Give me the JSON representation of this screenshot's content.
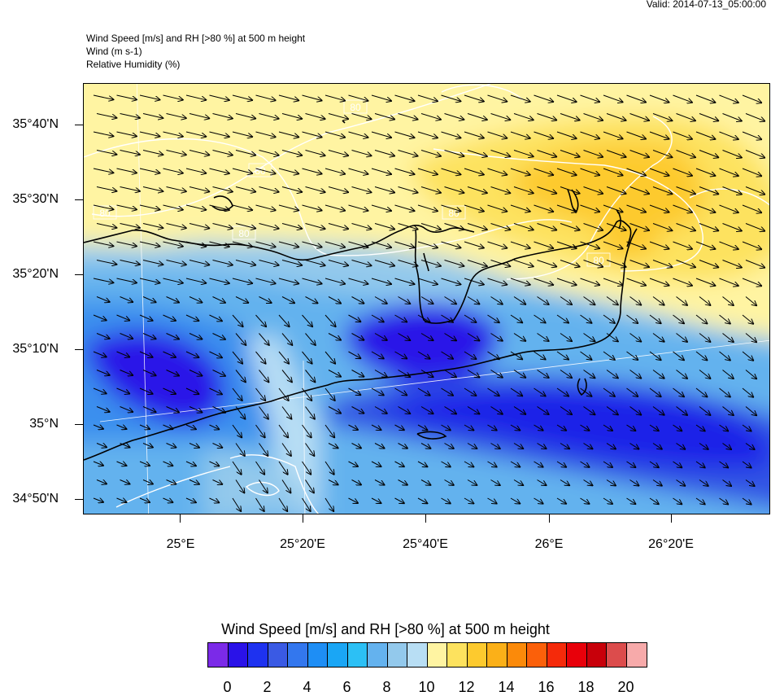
{
  "header": {
    "valid": "Valid: 2014-07-13_05:00:00",
    "line1": "Wind Speed [m/s] and RH [>80 %] at 500 m height",
    "line2": "Wind   (m s-1)",
    "line3": "Relative Humidity   (%)"
  },
  "map": {
    "lat_labels": [
      "35°40'N",
      "35°30'N",
      "35°20'N",
      "35°10'N",
      "35°N",
      "34°50'N"
    ],
    "lon_labels": [
      "25°E",
      "25°20'E",
      "25°40'E",
      "26°E",
      "26°20'E"
    ],
    "contour_labels": [
      "80",
      "80",
      "80",
      "80",
      "80",
      "80"
    ],
    "wind_direction": "west-northwest, toward east-southeast",
    "land_outline_color": "#000000",
    "rh_contour_color": "#ffffff",
    "grid_color": "#ffffff"
  },
  "colorbar": {
    "title": "Wind Speed [m/s] and RH [>80 %] at 500 m height",
    "tick_labels": [
      "0",
      "2",
      "4",
      "6",
      "8",
      "10",
      "12",
      "14",
      "16",
      "18",
      "20"
    ],
    "colors": [
      "#7b2ae8",
      "#2a12e8",
      "#1e32f0",
      "#3a5ae4",
      "#3377ee",
      "#1e8ef5",
      "#1aa6f5",
      "#2cc0f5",
      "#64b2ee",
      "#93c9ec",
      "#b8def4",
      "#fff4a2",
      "#fde25e",
      "#fdca2e",
      "#fbb018",
      "#fb8a0a",
      "#fb600a",
      "#f52a0a",
      "#e8000a",
      "#c8000a",
      "#dc4c4c",
      "#f7aaaa"
    ]
  }
}
